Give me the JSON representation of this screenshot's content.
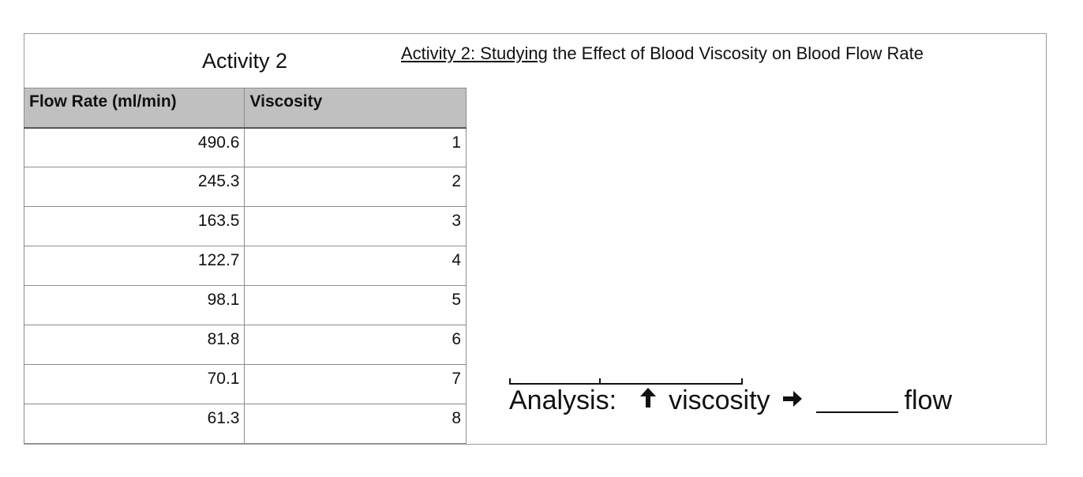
{
  "activity_title": "Activity 2",
  "heading": {
    "underlined": "Activity 2: Studying",
    "rest": " the Effect of Blood Viscosity on Blood Flow Rate"
  },
  "table": {
    "headers": [
      "Flow Rate (ml/min)",
      "Viscosity"
    ],
    "rows": [
      [
        "490.6",
        "1"
      ],
      [
        "245.3",
        "2"
      ],
      [
        "163.5",
        "3"
      ],
      [
        "122.7",
        "4"
      ],
      [
        "98.1",
        "5"
      ],
      [
        "81.8",
        "6"
      ],
      [
        "70.1",
        "7"
      ],
      [
        "61.3",
        "8"
      ]
    ]
  },
  "analysis": {
    "label": "Analysis:",
    "up_icon": "up-arrow-icon",
    "term": "viscosity",
    "right_icon": "right-arrow-icon",
    "tail": "flow"
  }
}
